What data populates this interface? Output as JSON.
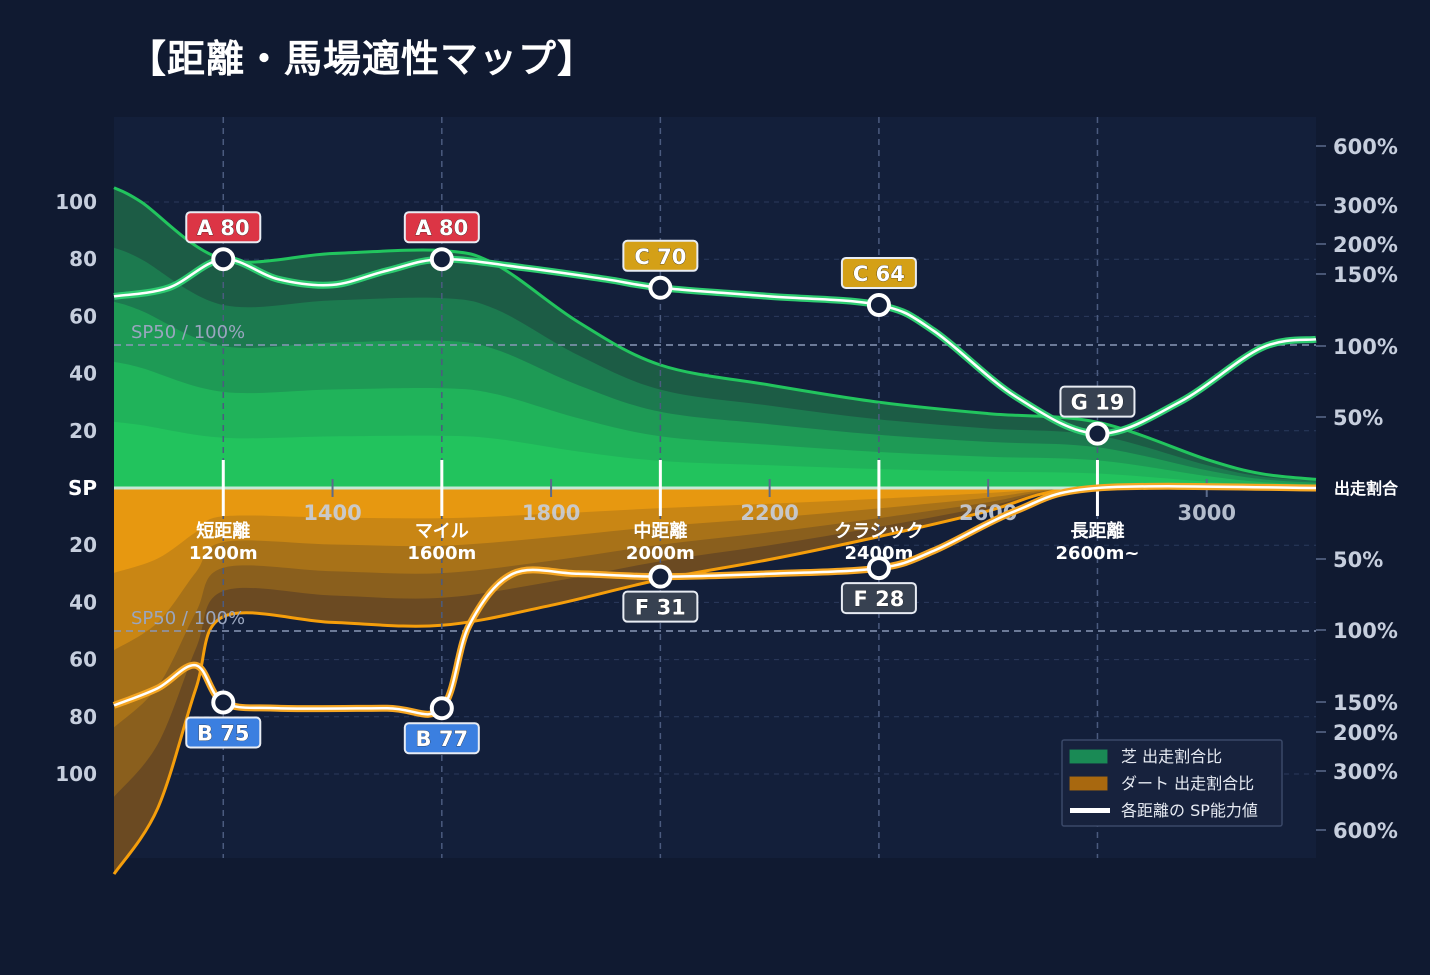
{
  "title": "【距離・馬場適性マップ】",
  "chart_data": {
    "type": "area",
    "x_ticks": [
      1400,
      1800,
      2200,
      2600,
      3000
    ],
    "x_range": [
      1000,
      3200
    ],
    "y_left_ticks": {
      "turf": [
        20,
        40,
        60,
        80,
        100
      ],
      "dirt": [
        20,
        40,
        60,
        80,
        100
      ],
      "zero_label": "SP"
    },
    "y_right_ticks": {
      "turf": [
        "600%",
        "300%",
        "200%",
        "150%",
        "100%",
        "50%"
      ],
      "dirt": [
        "50%",
        "100%",
        "150%",
        "200%",
        "300%",
        "600%"
      ],
      "zero_label": "出走割合"
    },
    "reference_line_label": "SP50 / 100%",
    "categories": [
      {
        "name": "短距離",
        "distance": "1200m",
        "x": 1200
      },
      {
        "name": "マイル",
        "distance": "1600m",
        "x": 1600
      },
      {
        "name": "中距離",
        "distance": "2000m",
        "x": 2000
      },
      {
        "name": "クラシック",
        "distance": "2400m",
        "x": 2400
      },
      {
        "name": "長距離",
        "distance": "2600m~",
        "x": 2800
      }
    ],
    "turf_sp": [
      {
        "x": 1200,
        "value": 80,
        "grade": "A",
        "label": "A 80"
      },
      {
        "x": 1600,
        "value": 80,
        "grade": "A",
        "label": "A 80"
      },
      {
        "x": 2000,
        "value": 70,
        "grade": "C",
        "label": "C 70"
      },
      {
        "x": 2400,
        "value": 64,
        "grade": "C",
        "label": "C 64"
      },
      {
        "x": 2800,
        "value": 19,
        "grade": "G",
        "label": "G 19"
      }
    ],
    "dirt_sp": [
      {
        "x": 1200,
        "value": 75,
        "grade": "B",
        "label": "B 75"
      },
      {
        "x": 1600,
        "value": 77,
        "grade": "B",
        "label": "B 77"
      },
      {
        "x": 2000,
        "value": 31,
        "grade": "F",
        "label": "F 31"
      },
      {
        "x": 2400,
        "value": 28,
        "grade": "F",
        "label": "F 28"
      }
    ],
    "turf_sp_curve": [
      [
        1000,
        67
      ],
      [
        1100,
        70
      ],
      [
        1200,
        80
      ],
      [
        1300,
        73
      ],
      [
        1400,
        71
      ],
      [
        1500,
        76
      ],
      [
        1600,
        80
      ],
      [
        1750,
        77
      ],
      [
        1900,
        73
      ],
      [
        2000,
        70
      ],
      [
        2200,
        67
      ],
      [
        2400,
        64
      ],
      [
        2500,
        55
      ],
      [
        2650,
        32
      ],
      [
        2800,
        19
      ],
      [
        2950,
        30
      ],
      [
        3100,
        49
      ],
      [
        3200,
        52
      ]
    ],
    "dirt_sp_curve": [
      [
        1000,
        76
      ],
      [
        1080,
        70
      ],
      [
        1150,
        62
      ],
      [
        1200,
        75
      ],
      [
        1300,
        77
      ],
      [
        1500,
        77
      ],
      [
        1600,
        77
      ],
      [
        1650,
        48
      ],
      [
        1730,
        30
      ],
      [
        1850,
        30
      ],
      [
        2000,
        31
      ],
      [
        2200,
        30
      ],
      [
        2400,
        28
      ],
      [
        2500,
        22
      ],
      [
        2650,
        8
      ],
      [
        2800,
        0
      ],
      [
        3200,
        0
      ]
    ],
    "turf_share_max_curve": [
      [
        1000,
        105
      ],
      [
        1050,
        100
      ],
      [
        1200,
        80
      ],
      [
        1400,
        82
      ],
      [
        1600,
        83
      ],
      [
        1700,
        78
      ],
      [
        1850,
        58
      ],
      [
        2000,
        43
      ],
      [
        2200,
        36
      ],
      [
        2400,
        30
      ],
      [
        2600,
        26
      ],
      [
        2800,
        23
      ],
      [
        3000,
        10
      ],
      [
        3100,
        5
      ],
      [
        3200,
        3
      ]
    ],
    "dirt_share_max_curve": [
      [
        1000,
        135
      ],
      [
        1080,
        112
      ],
      [
        1150,
        70
      ],
      [
        1200,
        45
      ],
      [
        1400,
        47
      ],
      [
        1600,
        48
      ],
      [
        1800,
        41
      ],
      [
        2000,
        32
      ],
      [
        2200,
        25
      ],
      [
        2400,
        17
      ],
      [
        2600,
        8
      ],
      [
        2700,
        2
      ],
      [
        2800,
        0
      ],
      [
        3200,
        0
      ]
    ],
    "colors": {
      "background": "#101a31",
      "plot_bg": "#131f3a",
      "turf": "#22c55e",
      "dirt": "#f59e0b",
      "sp_line": "#ffffff",
      "grade_A": "#dc3545",
      "grade_B": "#3b7fe0",
      "grade_C": "#d4a017",
      "grade_F": "#374151",
      "grade_G": "#374151"
    },
    "legend": {
      "position": "bottom-right",
      "items": [
        {
          "label": "芝 出走割合比",
          "color": "#1a8a55"
        },
        {
          "label": "ダート 出走割合比",
          "color": "#a8680f"
        },
        {
          "label": "各距離の SP能力値",
          "color": "#ffffff"
        }
      ]
    },
    "grid": true
  }
}
